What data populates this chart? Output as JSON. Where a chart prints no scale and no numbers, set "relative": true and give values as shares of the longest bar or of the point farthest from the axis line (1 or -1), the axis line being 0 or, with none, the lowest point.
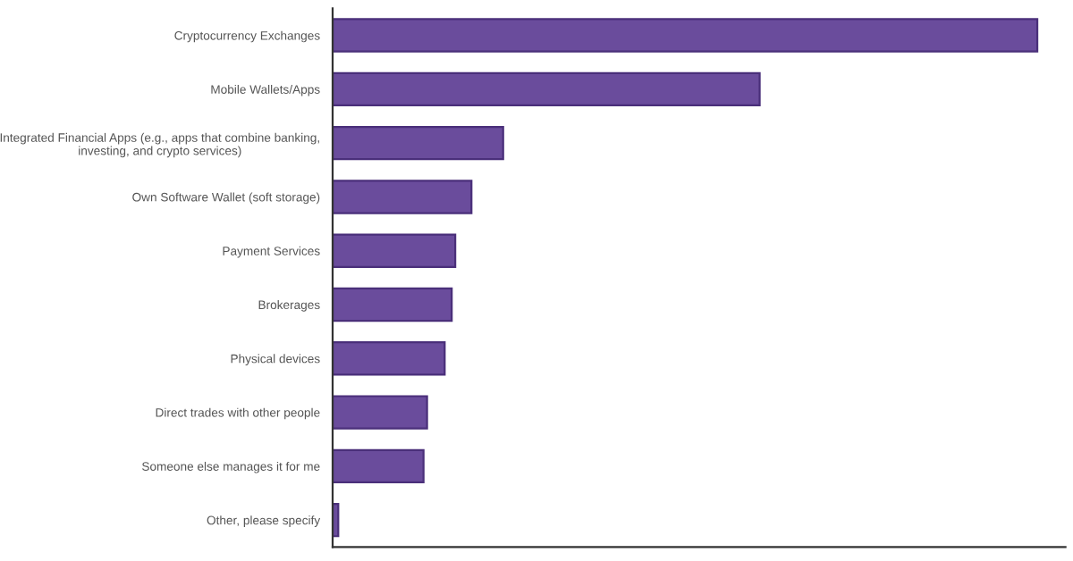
{
  "chart_data": {
    "type": "bar",
    "orientation": "horizontal",
    "relative": true,
    "categories": [
      "Cryptocurrency Exchanges",
      "Mobile Wallets/Apps",
      "Integrated Financial Apps (e.g., apps that combine banking,\ninvesting, and crypto services)",
      "Own Software Wallet (soft storage)",
      "Payment Services",
      "Brokerages",
      "Physical devices",
      "Direct trades with other people",
      "Someone else manages it for me",
      "Other, please specify"
    ],
    "values": [
      1,
      0.606,
      0.242,
      0.197,
      0.174,
      0.169,
      0.159,
      0.134,
      0.129,
      0.008
    ],
    "color": "#6a4c9c",
    "grid": false,
    "legend": false
  }
}
